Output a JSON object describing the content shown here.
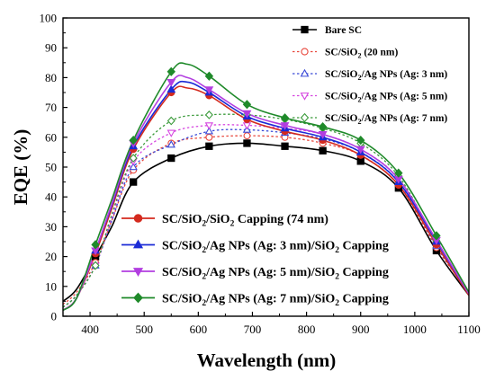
{
  "chart_data": {
    "type": "line",
    "xlabel": "Wavelength (nm)",
    "ylabel": "EQE (%)",
    "xlim": [
      350,
      1100
    ],
    "ylim": [
      0,
      100
    ],
    "xticks": [
      400,
      500,
      600,
      700,
      800,
      900,
      1000,
      1100
    ],
    "yticks": [
      0,
      10,
      20,
      30,
      40,
      50,
      60,
      70,
      80,
      90,
      100
    ],
    "grid": false,
    "series": [
      {
        "id": "bare",
        "name": "Bare SC",
        "color": "#000000",
        "dashed": false,
        "marker": "square",
        "filled": true,
        "x": [
          350,
          375,
          410,
          440,
          480,
          550,
          620,
          690,
          760,
          830,
          900,
          970,
          1040,
          1100
        ],
        "y": [
          5,
          9,
          20,
          30,
          45,
          53,
          57,
          58,
          57,
          55.5,
          52,
          43,
          22,
          7
        ],
        "mx": [
          410,
          480,
          550,
          620,
          690,
          760,
          830,
          900,
          970,
          1040
        ]
      },
      {
        "id": "sio2",
        "name": "SC/SiO₂ (20 nm)",
        "color": "#e8473c",
        "dashed": true,
        "marker": "circle",
        "filled": false,
        "x": [
          350,
          375,
          410,
          440,
          480,
          550,
          620,
          690,
          760,
          830,
          900,
          970,
          1040,
          1100
        ],
        "y": [
          4,
          8,
          18,
          32,
          49,
          58,
          60,
          60.5,
          60,
          58,
          54,
          44,
          23,
          8
        ],
        "mx": [
          410,
          480,
          550,
          620,
          690,
          760,
          830,
          900,
          970,
          1040
        ]
      },
      {
        "id": "ag3",
        "name": "SC/SiO₂/Ag NPs (Ag: 3 nm)",
        "color": "#3b4bd8",
        "dashed": true,
        "marker": "triangle-up",
        "filled": false,
        "x": [
          350,
          375,
          410,
          440,
          480,
          550,
          620,
          690,
          760,
          830,
          900,
          970,
          1040,
          1100
        ],
        "y": [
          3,
          7,
          17,
          32,
          50,
          57.5,
          62,
          62.5,
          61.5,
          59.5,
          55,
          45,
          23.5,
          8
        ],
        "mx": [
          410,
          480,
          550,
          620,
          690,
          760,
          830,
          900,
          970,
          1040
        ]
      },
      {
        "id": "ag5",
        "name": "SC/SiO₂/Ag NPs (Ag: 5 nm)",
        "color": "#d646e0",
        "dashed": true,
        "marker": "triangle-down",
        "filled": false,
        "x": [
          350,
          375,
          410,
          440,
          480,
          550,
          620,
          690,
          760,
          830,
          900,
          970,
          1040,
          1100
        ],
        "y": [
          3,
          7,
          17,
          33,
          52,
          61.5,
          64,
          64,
          63,
          61,
          56,
          46,
          24,
          8
        ],
        "mx": [
          410,
          480,
          550,
          620,
          690,
          760,
          830,
          900,
          970,
          1040
        ]
      },
      {
        "id": "ag7",
        "name": "SC/SiO₂/Ag NPs (Ag: 7 nm)",
        "color": "#3a9a3a",
        "dashed": true,
        "marker": "diamond",
        "filled": false,
        "x": [
          350,
          375,
          410,
          440,
          480,
          550,
          620,
          690,
          760,
          830,
          900,
          970,
          1040,
          1100
        ],
        "y": [
          3,
          7,
          17,
          34,
          53,
          65.5,
          67.5,
          67.5,
          66,
          63,
          58,
          47,
          25,
          8
        ],
        "mx": [
          410,
          480,
          550,
          620,
          690,
          760,
          830,
          900,
          970,
          1040
        ]
      },
      {
        "id": "cap",
        "name": "SC/SiO₂/SiO₂ Capping (74 nm)",
        "color": "#d42a1e",
        "dashed": false,
        "marker": "circle",
        "filled": true,
        "x": [
          350,
          375,
          410,
          440,
          480,
          550,
          580,
          620,
          690,
          760,
          830,
          900,
          970,
          1040,
          1100
        ],
        "y": [
          2,
          6,
          21,
          36,
          56,
          75,
          76.5,
          74,
          66,
          62,
          59,
          54,
          44,
          24,
          7
        ],
        "mx": [
          410,
          480,
          550,
          620,
          690,
          760,
          830,
          900,
          970,
          1040
        ]
      },
      {
        "id": "cap3",
        "name": "SC/SiO₂/Ag NPs (Ag: 3 nm)/SiO₂ Capping",
        "color": "#1b2bd6",
        "dashed": false,
        "marker": "triangle-up",
        "filled": true,
        "x": [
          350,
          375,
          410,
          440,
          480,
          550,
          580,
          620,
          690,
          760,
          830,
          900,
          970,
          1040,
          1100
        ],
        "y": [
          2,
          6,
          22,
          37,
          57,
          76,
          78.5,
          75,
          67,
          63,
          60,
          55,
          45,
          25,
          7.5
        ],
        "mx": [
          410,
          480,
          550,
          620,
          690,
          760,
          830,
          900,
          970,
          1040
        ]
      },
      {
        "id": "cap5",
        "name": "SC/SiO₂/Ag NPs (Ag: 5 nm)/SiO₂ Capping",
        "color": "#b23ee0",
        "dashed": false,
        "marker": "triangle-down",
        "filled": true,
        "x": [
          350,
          375,
          410,
          440,
          480,
          550,
          580,
          620,
          690,
          760,
          830,
          900,
          970,
          1040,
          1100
        ],
        "y": [
          2,
          6,
          22,
          37.5,
          58,
          78.5,
          80,
          76,
          68,
          64,
          61,
          56,
          46,
          25.5,
          7.5
        ],
        "mx": [
          410,
          480,
          550,
          620,
          690,
          760,
          830,
          900,
          970,
          1040
        ]
      },
      {
        "id": "cap7",
        "name": "SC/SiO₂/Ag NPs (Ag: 7 nm)/SiO₂ Capping",
        "color": "#1f8a2a",
        "dashed": false,
        "marker": "diamond",
        "filled": true,
        "x": [
          350,
          375,
          410,
          440,
          480,
          550,
          580,
          620,
          690,
          760,
          830,
          900,
          970,
          1040,
          1100
        ],
        "y": [
          2,
          6,
          24,
          39,
          59,
          82,
          84.5,
          80.5,
          71,
          66.5,
          63.5,
          59,
          48,
          27,
          8
        ],
        "mx": [
          410,
          480,
          550,
          620,
          690,
          760,
          830,
          900,
          970,
          1040
        ]
      }
    ],
    "legend_top": {
      "placement": "top-right",
      "entries": [
        {
          "series": "bare",
          "pre": "Bare SC",
          "sub": "",
          "post": ""
        },
        {
          "series": "sio2",
          "pre": "SC/SiO",
          "sub": "2",
          "post": " (20 nm)"
        },
        {
          "series": "ag3",
          "pre": "SC/SiO",
          "sub": "2",
          "post": "/Ag NPs (Ag: 3 nm)"
        },
        {
          "series": "ag5",
          "pre": "SC/SiO",
          "sub": "2",
          "post": "/Ag NPs (Ag: 5 nm)"
        },
        {
          "series": "ag7",
          "pre": "SC/SiO",
          "sub": "2",
          "post": "/Ag NPs (Ag: 7 nm)"
        }
      ]
    },
    "legend_bottom": {
      "placement": "bottom-center",
      "entries": [
        {
          "series": "cap",
          "pre": "SC/SiO",
          "sub": "2",
          "mid": "/SiO",
          "sub2": "2",
          "post": " Capping (74 nm)"
        },
        {
          "series": "cap3",
          "pre": "SC/SiO",
          "sub": "2",
          "mid": "/Ag NPs (Ag: 3 nm)/SiO",
          "sub2": "2",
          "post": " Capping"
        },
        {
          "series": "cap5",
          "pre": "SC/SiO",
          "sub": "2",
          "mid": "/Ag NPs (Ag: 5 nm)/SiO",
          "sub2": "2",
          "post": " Capping"
        },
        {
          "series": "cap7",
          "pre": "SC/SiO",
          "sub": "2",
          "mid": "/Ag NPs (Ag: 7 nm)/SiO",
          "sub2": "2",
          "post": " Capping"
        }
      ]
    }
  }
}
